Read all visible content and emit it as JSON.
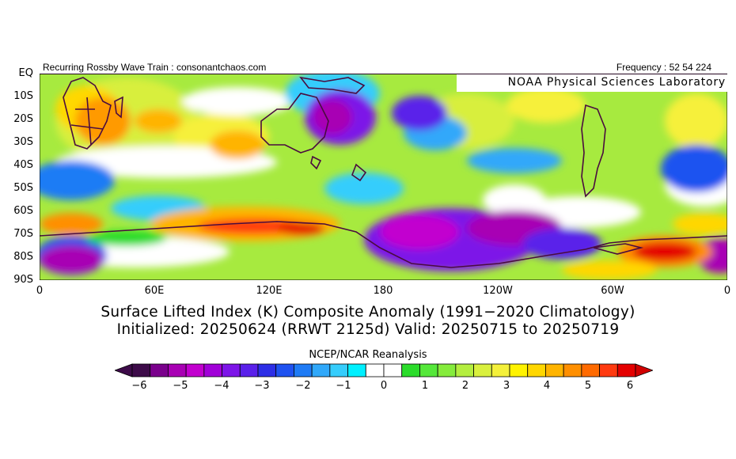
{
  "header": {
    "left_text": "Recurring Rossby Wave Train : consonantchaos.com",
    "right_text": "Frequency : 52 54 224"
  },
  "map": {
    "lab_label": "NOAA Physical Sciences Laboratory",
    "lat_labels": [
      "EQ",
      "10S",
      "20S",
      "30S",
      "40S",
      "50S",
      "60S",
      "70S",
      "80S",
      "90S"
    ],
    "lon_labels": [
      "0",
      "60E",
      "120E",
      "180",
      "120W",
      "60W",
      "0"
    ],
    "longitude_extent": [
      0,
      360
    ],
    "latitude_extent": [
      0,
      -90
    ]
  },
  "caption": {
    "line1": "Surface Lifted Index (K) Composite Anomaly (1991−2020 Climatology)",
    "line2": "Initialized: 20250624 (RRWT 2125d) Valid: 20250715 to 20250719"
  },
  "colorbar": {
    "title": "NCEP/NCAR Reanalysis",
    "labels": [
      "−6",
      "−5",
      "−4",
      "−3",
      "−2",
      "−1",
      "0",
      "1",
      "2",
      "3",
      "4",
      "5",
      "6"
    ],
    "colors": [
      "#3d0b49",
      "#7a008c",
      "#a800b4",
      "#c200cf",
      "#a100d8",
      "#7d15e8",
      "#5a20ea",
      "#2d2ee6",
      "#1f52f0",
      "#1f7bf5",
      "#30a8fa",
      "#36cdfc",
      "#00f0ff",
      "#ffffff",
      "#ffffff",
      "#2bdc2b",
      "#55e83a",
      "#85ec3c",
      "#b4ee3f",
      "#d9f03e",
      "#f4f03a",
      "#fff300",
      "#ffd700",
      "#ffb400",
      "#ff8f00",
      "#ff6a00",
      "#ff3a10",
      "#e40000"
    ],
    "left_arrow_color": "#3d0b49",
    "right_arrow_color": "#d10000"
  }
}
